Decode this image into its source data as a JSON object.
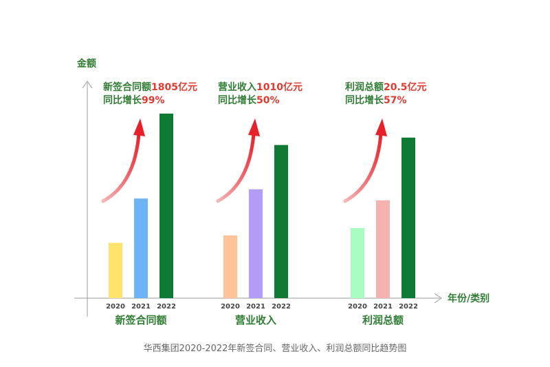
{
  "chart_data": {
    "type": "bar",
    "title": "华西集团2020-2022年新签合同、营业收入、利润总额同比趋势图",
    "ylabel": "金额",
    "xlabel": "年份/类别",
    "years": [
      "2020",
      "2021",
      "2022"
    ],
    "groups": [
      {
        "name": "新签合同额",
        "values": [
          0.3,
          0.54,
          1.0
        ],
        "colors": [
          "#ffe36a",
          "#6fb3f7",
          "#0f7a33"
        ],
        "ann_line1_prefix": "新签合同额",
        "ann_line1_value": "1805亿元",
        "ann_line2_prefix": "同比增长",
        "ann_line2_value": "99%"
      },
      {
        "name": "营业收入",
        "values": [
          0.34,
          0.59,
          0.83
        ],
        "colors": [
          "#ffc397",
          "#b39cf5",
          "#0f7a33"
        ],
        "ann_line1_prefix": "营业收入",
        "ann_line1_value": "1010亿元",
        "ann_line2_prefix": "同比增长",
        "ann_line2_value": "50%"
      },
      {
        "name": "利润总额",
        "values": [
          0.38,
          0.53,
          0.87
        ],
        "colors": [
          "#a6fcc1",
          "#f6b1b1",
          "#0f7a33"
        ],
        "ann_line1_prefix": "利润总额",
        "ann_line1_value": "20.5亿元",
        "ann_line2_prefix": "同比增长",
        "ann_line2_value": "57%"
      }
    ],
    "colors": {
      "annotation": "#2f7d33",
      "highlight": "#e03a2f",
      "axis": "#9a9a9a"
    }
  }
}
